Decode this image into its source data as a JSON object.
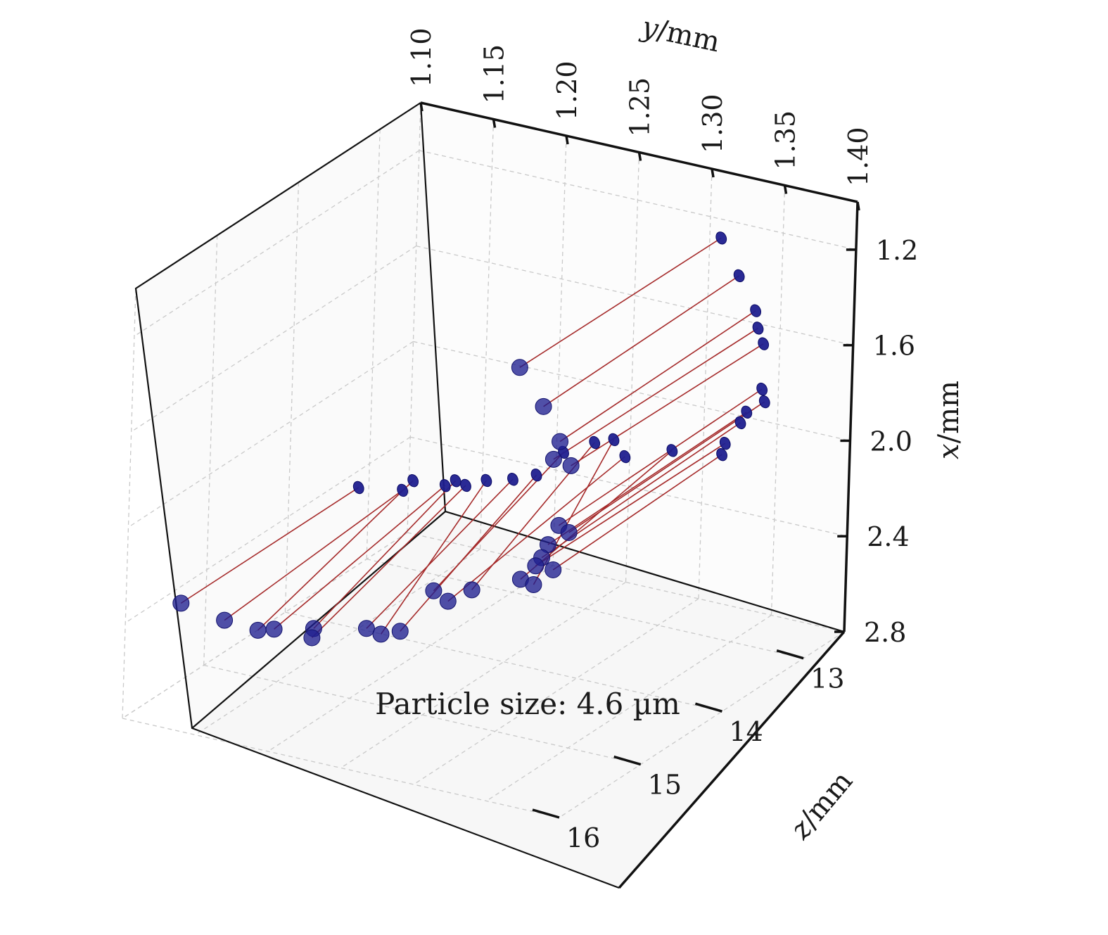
{
  "chart_data": {
    "type": "scatter",
    "title": "",
    "annotation": "Particle size: 4.6 µm",
    "axes": {
      "y": {
        "label_var": "y",
        "label_unit": "/mm",
        "range": [
          1.1,
          1.4
        ],
        "ticks": [
          "1.10",
          "1.15",
          "1.20",
          "1.25",
          "1.30",
          "1.35",
          "1.40"
        ]
      },
      "x": {
        "label_var": "x",
        "label_unit": "/mm",
        "range": [
          1.0,
          2.8
        ],
        "ticks": [
          "1.2",
          "1.6",
          "2.0",
          "2.4",
          "2.8"
        ]
      },
      "z": {
        "label_var": "z",
        "label_unit": "/mm",
        "range": [
          12.5,
          16.0
        ],
        "ticks": [
          "13",
          "14",
          "15",
          "16"
        ]
      }
    },
    "grid": true,
    "marker_color": "#1f1f8f",
    "line_color": "#a52a2a",
    "pairs": [
      {
        "start": {
          "y": 1.335,
          "x": 1.13,
          "z": 13.0
        },
        "end": {
          "y": 1.233,
          "x": 1.68,
          "z": 13.6
        }
      },
      {
        "start": {
          "y": 1.348,
          "x": 1.27,
          "z": 13.0
        },
        "end": {
          "y": 1.25,
          "x": 1.82,
          "z": 13.6
        }
      },
      {
        "start": {
          "y": 1.36,
          "x": 1.4,
          "z": 13.0
        },
        "end": {
          "y": 1.262,
          "x": 1.95,
          "z": 13.6
        }
      },
      {
        "start": {
          "y": 1.362,
          "x": 1.47,
          "z": 13.0
        },
        "end": {
          "y": 1.258,
          "x": 2.03,
          "z": 13.6
        }
      },
      {
        "start": {
          "y": 1.366,
          "x": 1.53,
          "z": 13.0
        },
        "end": {
          "y": 1.27,
          "x": 2.04,
          "z": 13.6
        }
      },
      {
        "start": {
          "y": 1.366,
          "x": 1.72,
          "z": 13.0
        },
        "end": {
          "y": 1.263,
          "x": 2.3,
          "z": 13.6
        }
      },
      {
        "start": {
          "y": 1.368,
          "x": 1.77,
          "z": 13.0
        },
        "end": {
          "y": 1.27,
          "x": 2.32,
          "z": 13.6
        }
      },
      {
        "start": {
          "y": 1.356,
          "x": 1.83,
          "z": 13.0
        },
        "end": {
          "y": 1.256,
          "x": 2.39,
          "z": 13.6
        }
      },
      {
        "start": {
          "y": 1.352,
          "x": 1.88,
          "z": 13.0
        },
        "end": {
          "y": 1.252,
          "x": 2.45,
          "z": 13.6
        }
      },
      {
        "start": {
          "y": 1.342,
          "x": 1.98,
          "z": 13.0
        },
        "end": {
          "y": 1.248,
          "x": 2.49,
          "z": 13.6
        }
      },
      {
        "start": {
          "y": 1.34,
          "x": 2.03,
          "z": 13.0
        },
        "end": {
          "y": 1.26,
          "x": 2.49,
          "z": 13.6
        }
      },
      {
        "start": {
          "y": 1.306,
          "x": 2.06,
          "z": 13.0
        },
        "end": {
          "y": 1.238,
          "x": 2.56,
          "z": 13.6
        }
      },
      {
        "start": {
          "y": 1.266,
          "x": 2.07,
          "z": 13.0
        },
        "end": {
          "y": 1.247,
          "x": 2.57,
          "z": 13.6
        }
      },
      {
        "start": {
          "y": 1.253,
          "x": 2.1,
          "z": 13.0
        },
        "end": {
          "y": 1.205,
          "x": 2.65,
          "z": 13.6
        }
      },
      {
        "start": {
          "y": 1.232,
          "x": 2.17,
          "z": 13.0
        },
        "end": {
          "y": 1.179,
          "x": 2.69,
          "z": 13.6
        }
      },
      {
        "start": {
          "y": 1.274,
          "x": 2.13,
          "z": 13.0
        },
        "end": {
          "y": 1.189,
          "x": 2.72,
          "z": 13.6
        }
      },
      {
        "start": {
          "y": 1.214,
          "x": 2.29,
          "z": 13.0
        },
        "end": {
          "y": 1.157,
          "x": 2.89,
          "z": 13.6
        }
      },
      {
        "start": {
          "y": 1.198,
          "x": 2.33,
          "z": 13.0
        },
        "end": {
          "y": 1.134,
          "x": 2.91,
          "z": 13.6
        }
      },
      {
        "start": {
          "y": 1.18,
          "x": 2.36,
          "z": 13.0
        },
        "end": {
          "y": 1.144,
          "x": 2.92,
          "z": 13.6
        }
      },
      {
        "start": {
          "y": 1.159,
          "x": 2.39,
          "z": 13.0
        },
        "end": {
          "y": 1.098,
          "x": 2.96,
          "z": 13.6
        }
      },
      {
        "start": {
          "y": 1.166,
          "x": 2.4,
          "z": 13.0
        },
        "end": {
          "y": 1.097,
          "x": 3.0,
          "z": 13.6
        }
      },
      {
        "start": {
          "y": 1.152,
          "x": 2.42,
          "z": 13.0
        },
        "end": {
          "y": 1.071,
          "x": 3.0,
          "z": 13.6
        }
      },
      {
        "start": {
          "y": 1.13,
          "x": 2.43,
          "z": 13.0
        },
        "end": {
          "y": 1.06,
          "x": 3.02,
          "z": 13.6
        }
      },
      {
        "start": {
          "y": 1.123,
          "x": 2.48,
          "z": 13.0
        },
        "end": {
          "y": 1.037,
          "x": 3.01,
          "z": 13.6
        }
      },
      {
        "start": {
          "y": 1.093,
          "x": 2.51,
          "z": 13.0
        },
        "end": {
          "y": 1.007,
          "x": 2.98,
          "z": 13.6
        }
      }
    ]
  }
}
